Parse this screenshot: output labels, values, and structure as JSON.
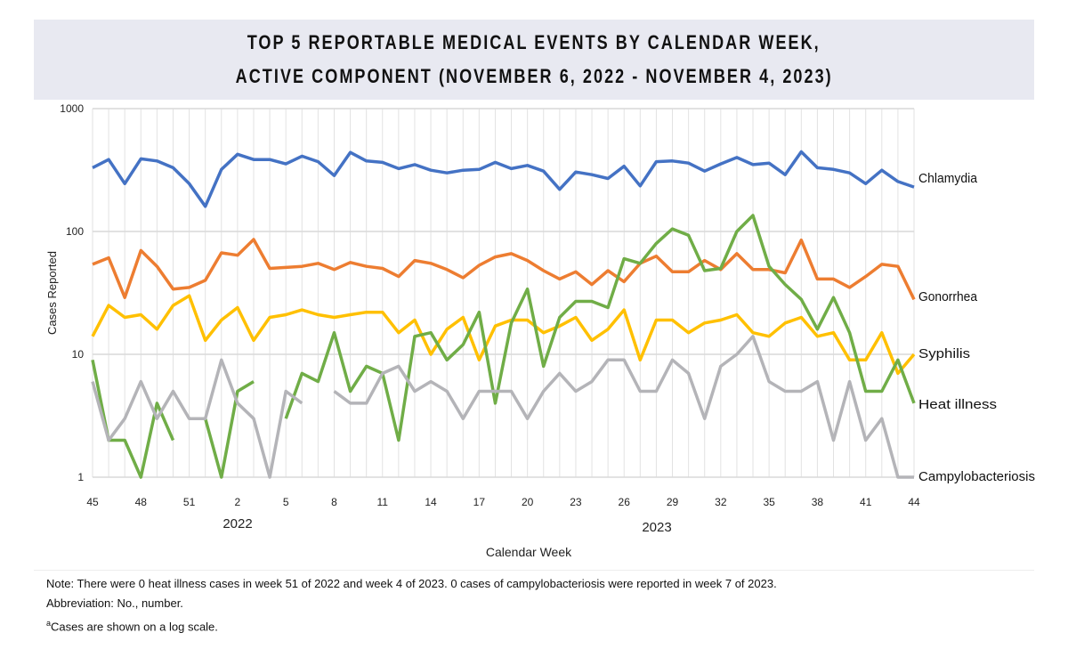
{
  "chart_data": {
    "type": "line",
    "title_lines": [
      "TOP 5 REPORTABLE MEDICAL EVENTS BY CALENDAR WEEK,",
      "ACTIVE COMPONENT (NOVEMBER 6, 2022 - NOVEMBER 4, 2023)"
    ],
    "xlabel": "Calendar Week",
    "ylabel": "Cases Reported",
    "y_scale": "log",
    "ylim": [
      1,
      1000
    ],
    "y_ticks": [
      "1",
      "10",
      "100",
      "1000"
    ],
    "grid": true,
    "legend": "direct labels at right end of lines",
    "year_labels": [
      "2022",
      "2023"
    ],
    "x": [
      45,
      46,
      47,
      48,
      49,
      50,
      51,
      52,
      1,
      2,
      3,
      4,
      5,
      6,
      7,
      8,
      9,
      10,
      11,
      12,
      13,
      14,
      15,
      16,
      17,
      18,
      19,
      20,
      21,
      22,
      23,
      24,
      25,
      26,
      27,
      28,
      29,
      30,
      31,
      32,
      33,
      34,
      35,
      36,
      37,
      38,
      39,
      40,
      41,
      42,
      43,
      44
    ],
    "x_tick_labels": [
      "45",
      "48",
      "51",
      "2",
      "5",
      "8",
      "11",
      "14",
      "17",
      "20",
      "23",
      "26",
      "29",
      "32",
      "35",
      "38",
      "41",
      "44"
    ],
    "series": [
      {
        "name": "Chlamydia",
        "color": "#4472c4",
        "values": [
          330,
          385,
          245,
          390,
          375,
          330,
          245,
          160,
          320,
          425,
          385,
          385,
          355,
          410,
          370,
          285,
          440,
          375,
          365,
          325,
          350,
          315,
          300,
          315,
          320,
          365,
          325,
          345,
          310,
          220,
          305,
          290,
          270,
          340,
          235,
          370,
          375,
          360,
          310,
          355,
          400,
          350,
          360,
          290,
          445,
          330,
          320,
          300,
          245,
          315,
          255,
          230
        ]
      },
      {
        "name": "Gonorrhea",
        "color": "#ed7d31",
        "values": [
          54,
          61,
          29,
          70,
          52,
          34,
          35,
          40,
          67,
          64,
          86,
          50,
          51,
          52,
          55,
          49,
          56,
          52,
          50,
          43,
          58,
          55,
          49,
          42,
          53,
          62,
          66,
          58,
          48,
          41,
          47,
          37,
          48,
          39,
          55,
          63,
          47,
          47,
          58,
          49,
          66,
          49,
          49,
          46,
          85,
          41,
          41,
          35,
          43,
          54,
          52,
          28
        ]
      },
      {
        "name": "Syphilis",
        "color": "#ffc000",
        "values": [
          14,
          25,
          20,
          21,
          16,
          25,
          30,
          13,
          19,
          24,
          13,
          20,
          21,
          23,
          21,
          20,
          21,
          22,
          22,
          15,
          19,
          10,
          16,
          20,
          9,
          17,
          19,
          19,
          15,
          17,
          20,
          13,
          16,
          23,
          9,
          19,
          19,
          15,
          18,
          19,
          21,
          15,
          14,
          18,
          20,
          14,
          15,
          9,
          9,
          15,
          7,
          10
        ]
      },
      {
        "name": "Heat illness",
        "color": "#70ad47",
        "values": [
          9,
          2,
          2,
          1,
          4,
          2,
          null,
          3,
          1,
          5,
          6,
          null,
          3,
          7,
          6,
          15,
          5,
          8,
          7,
          2,
          14,
          15,
          9,
          12,
          22,
          4,
          18,
          34,
          8,
          20,
          27,
          27,
          24,
          60,
          55,
          80,
          105,
          93,
          48,
          50,
          100,
          135,
          52,
          37,
          28,
          16,
          29,
          15,
          5,
          5,
          9,
          4
        ]
      },
      {
        "name": "Campylobacteriosis",
        "color": "#b4b4b8",
        "values": [
          6,
          2,
          3,
          6,
          3,
          5,
          3,
          3,
          9,
          4,
          3,
          1,
          5,
          4,
          null,
          5,
          4,
          4,
          7,
          8,
          5,
          6,
          5,
          3,
          5,
          5,
          5,
          3,
          5,
          7,
          5,
          6,
          9,
          9,
          5,
          5,
          9,
          7,
          3,
          8,
          10,
          14,
          6,
          5,
          5,
          6,
          2,
          6,
          2,
          3,
          1,
          1
        ]
      }
    ]
  },
  "notes": {
    "note": "Note: There were 0 heat illness cases in week 51 of 2022 and week 4 of 2023. 0 cases of campylobacteriosis were reported in week 7 of 2023.",
    "abbreviation": "Abbreviation: No., number.",
    "footnote_marker": "a",
    "footnote": "Cases are shown on a log scale."
  }
}
